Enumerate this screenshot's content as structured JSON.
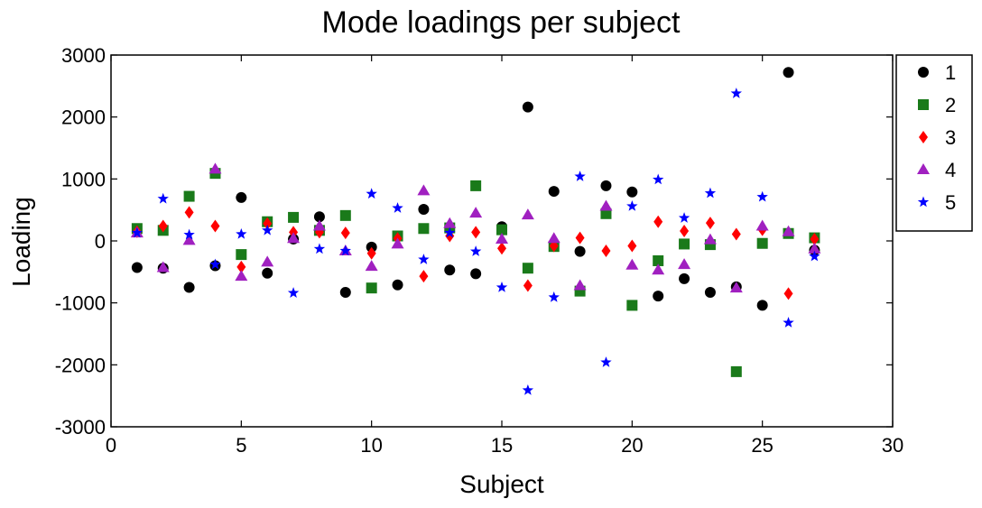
{
  "chart_data": {
    "type": "scatter",
    "title": "Mode loadings per subject",
    "xlabel": "Subject",
    "ylabel": "Loading",
    "xlim": [
      0,
      30
    ],
    "ylim": [
      -3000,
      3000
    ],
    "xticks": [
      "0",
      "5",
      "10",
      "15",
      "20",
      "25",
      "30"
    ],
    "yticks": [
      "-3000",
      "-2000",
      "-1000",
      "0",
      "1000",
      "2000",
      "3000"
    ],
    "grid": false,
    "legend_position": "right",
    "x": [
      1,
      2,
      3,
      4,
      5,
      6,
      7,
      8,
      9,
      10,
      11,
      12,
      13,
      14,
      15,
      16,
      17,
      18,
      19,
      20,
      21,
      22,
      23,
      24,
      25,
      26,
      27
    ],
    "series": [
      {
        "name": "1",
        "marker": "circle",
        "color": "#000000",
        "values": [
          -430,
          -440,
          -750,
          -400,
          700,
          -520,
          30,
          390,
          -830,
          -100,
          -710,
          510,
          -470,
          -530,
          230,
          2160,
          800,
          -170,
          890,
          790,
          -890,
          -610,
          -830,
          -740,
          -1040,
          2720,
          -150
        ]
      },
      {
        "name": "2",
        "marker": "square",
        "color": "#1a7a1a",
        "values": [
          200,
          170,
          720,
          1090,
          -220,
          310,
          380,
          170,
          410,
          -760,
          80,
          200,
          210,
          890,
          180,
          -440,
          -90,
          -810,
          440,
          -1040,
          -320,
          -50,
          -60,
          -2110,
          -40,
          120,
          50
        ]
      },
      {
        "name": "3",
        "marker": "diamond",
        "color": "#ff0000",
        "values": [
          150,
          240,
          460,
          240,
          -420,
          280,
          140,
          140,
          130,
          -200,
          40,
          -570,
          80,
          140,
          -120,
          -720,
          -80,
          50,
          -160,
          -80,
          310,
          160,
          290,
          110,
          180,
          -850,
          30
        ]
      },
      {
        "name": "4",
        "marker": "triangle",
        "color": "#a020c0",
        "values": [
          130,
          -430,
          10,
          1160,
          -570,
          -340,
          40,
          240,
          -160,
          -410,
          -50,
          810,
          280,
          450,
          30,
          420,
          40,
          -720,
          560,
          -390,
          -470,
          -380,
          20,
          -760,
          240,
          150,
          -130
        ]
      },
      {
        "name": "5",
        "marker": "star",
        "color": "#0000ff",
        "values": [
          130,
          680,
          100,
          -380,
          110,
          170,
          -840,
          -130,
          -160,
          760,
          530,
          -300,
          130,
          -170,
          -750,
          -2410,
          -910,
          1040,
          -1960,
          560,
          990,
          370,
          770,
          2380,
          710,
          -1320,
          -250
        ]
      }
    ]
  }
}
